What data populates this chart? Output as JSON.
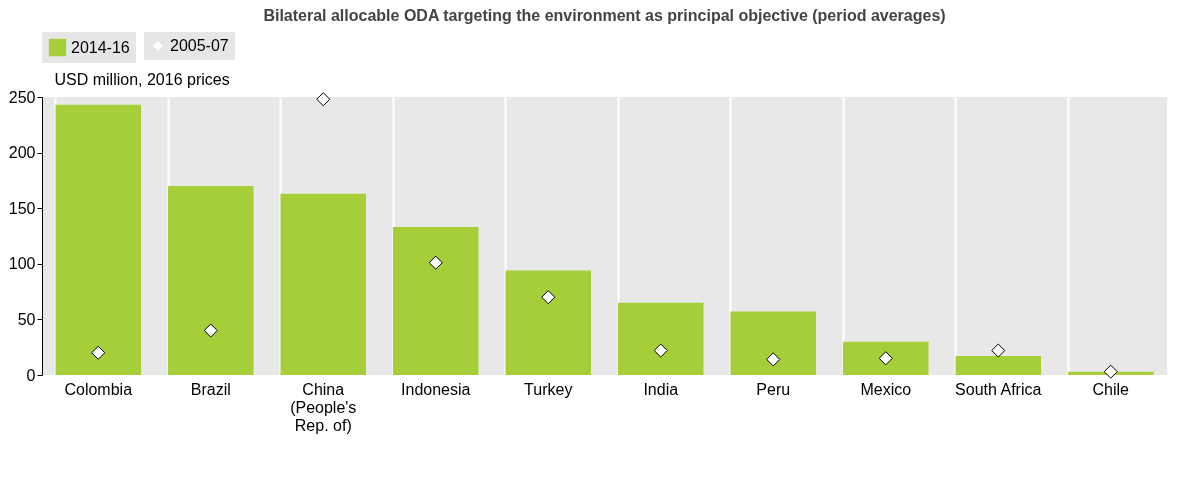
{
  "chart_data": {
    "type": "bar",
    "title": "Bilateral allocable ODA targeting the environment as principal objective (period averages)",
    "ylabel": "USD million, 2016 prices",
    "categories": [
      "Colombia",
      "Brazil",
      "China (People's Rep. of)",
      "Indonesia",
      "Turkey",
      "India",
      "Peru",
      "Mexico",
      "South Africa",
      "Chile"
    ],
    "series": [
      {
        "name": "2014-16",
        "color": "#a6ce39",
        "values": [
          243,
          170,
          163,
          133,
          94,
          65,
          57,
          30,
          17,
          3
        ]
      },
      {
        "name": "2005-07",
        "type": "scatter",
        "color": "#ffffff",
        "marker": "diamond",
        "values": [
          20,
          40,
          248,
          101,
          70,
          22,
          14,
          15,
          22,
          3
        ]
      }
    ],
    "ylim": [
      0,
      250
    ],
    "yticks": [
      0,
      50,
      100,
      150,
      200,
      250
    ],
    "grid": "x",
    "legend": "top"
  }
}
